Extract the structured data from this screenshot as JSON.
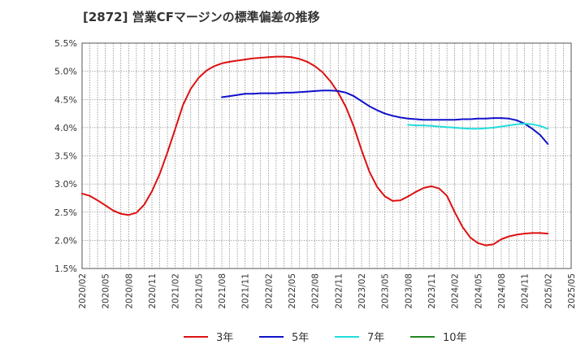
{
  "chart_data": {
    "type": "line",
    "title": "[2872]  営業CFマージンの標準偏差の推移",
    "xlabel": "",
    "ylabel": "",
    "ylim": [
      1.5,
      5.5
    ],
    "y_ticks": [
      "5.5%",
      "5.0%",
      "4.5%",
      "4.0%",
      "3.5%",
      "3.0%",
      "2.5%",
      "2.0%",
      "1.5%"
    ],
    "x_ticks": [
      "2020/02",
      "2020/05",
      "2020/08",
      "2020/11",
      "2021/02",
      "2021/05",
      "2021/08",
      "2021/11",
      "2022/02",
      "2022/05",
      "2022/08",
      "2022/11",
      "2023/02",
      "2023/05",
      "2023/08",
      "2023/11",
      "2024/02",
      "2024/05",
      "2024/08",
      "2024/11",
      "2025/02",
      "2025/05"
    ],
    "grid": true,
    "legend_position": "bottom",
    "series": [
      {
        "name": "3年",
        "color": "#dd1111",
        "points": [
          [
            "2020/02",
            2.83
          ],
          [
            "2020/03",
            2.79
          ],
          [
            "2020/04",
            2.71
          ],
          [
            "2020/05",
            2.62
          ],
          [
            "2020/06",
            2.53
          ],
          [
            "2020/07",
            2.47
          ],
          [
            "2020/08",
            2.45
          ],
          [
            "2020/09",
            2.49
          ],
          [
            "2020/10",
            2.63
          ],
          [
            "2020/11",
            2.87
          ],
          [
            "2020/12",
            3.18
          ],
          [
            "2021/01",
            3.56
          ],
          [
            "2021/02",
            3.98
          ],
          [
            "2021/03",
            4.4
          ],
          [
            "2021/04",
            4.69
          ],
          [
            "2021/05",
            4.88
          ],
          [
            "2021/06",
            5.01
          ],
          [
            "2021/07",
            5.09
          ],
          [
            "2021/08",
            5.14
          ],
          [
            "2021/09",
            5.17
          ],
          [
            "2021/10",
            5.19
          ],
          [
            "2021/11",
            5.21
          ],
          [
            "2021/12",
            5.23
          ],
          [
            "2022/01",
            5.24
          ],
          [
            "2022/02",
            5.25
          ],
          [
            "2022/03",
            5.26
          ],
          [
            "2022/04",
            5.26
          ],
          [
            "2022/05",
            5.25
          ],
          [
            "2022/06",
            5.22
          ],
          [
            "2022/07",
            5.17
          ],
          [
            "2022/08",
            5.09
          ],
          [
            "2022/09",
            4.98
          ],
          [
            "2022/10",
            4.82
          ],
          [
            "2022/11",
            4.62
          ],
          [
            "2022/12",
            4.36
          ],
          [
            "2023/01",
            4.02
          ],
          [
            "2023/02",
            3.6
          ],
          [
            "2023/03",
            3.22
          ],
          [
            "2023/04",
            2.95
          ],
          [
            "2023/05",
            2.78
          ],
          [
            "2023/06",
            2.7
          ],
          [
            "2023/07",
            2.71
          ],
          [
            "2023/08",
            2.78
          ],
          [
            "2023/09",
            2.86
          ],
          [
            "2023/10",
            2.93
          ],
          [
            "2023/11",
            2.96
          ],
          [
            "2023/12",
            2.92
          ],
          [
            "2024/01",
            2.79
          ],
          [
            "2024/02",
            2.5
          ],
          [
            "2024/03",
            2.24
          ],
          [
            "2024/04",
            2.05
          ],
          [
            "2024/05",
            1.95
          ],
          [
            "2024/06",
            1.91
          ],
          [
            "2024/07",
            1.93
          ],
          [
            "2024/08",
            2.02
          ],
          [
            "2024/09",
            2.07
          ],
          [
            "2024/10",
            2.1
          ],
          [
            "2024/11",
            2.12
          ],
          [
            "2024/12",
            2.13
          ],
          [
            "2025/01",
            2.13
          ],
          [
            "2025/02",
            2.12
          ]
        ]
      },
      {
        "name": "5年",
        "color": "#1111cc",
        "points": [
          [
            "2021/08",
            4.54
          ],
          [
            "2021/09",
            4.56
          ],
          [
            "2021/10",
            4.58
          ],
          [
            "2021/11",
            4.6
          ],
          [
            "2021/12",
            4.6
          ],
          [
            "2022/01",
            4.61
          ],
          [
            "2022/02",
            4.61
          ],
          [
            "2022/03",
            4.61
          ],
          [
            "2022/04",
            4.62
          ],
          [
            "2022/05",
            4.62
          ],
          [
            "2022/06",
            4.63
          ],
          [
            "2022/07",
            4.64
          ],
          [
            "2022/08",
            4.65
          ],
          [
            "2022/09",
            4.66
          ],
          [
            "2022/10",
            4.66
          ],
          [
            "2022/11",
            4.65
          ],
          [
            "2022/12",
            4.62
          ],
          [
            "2023/01",
            4.56
          ],
          [
            "2023/02",
            4.47
          ],
          [
            "2023/03",
            4.38
          ],
          [
            "2023/04",
            4.31
          ],
          [
            "2023/05",
            4.25
          ],
          [
            "2023/06",
            4.21
          ],
          [
            "2023/07",
            4.18
          ],
          [
            "2023/08",
            4.16
          ],
          [
            "2023/09",
            4.15
          ],
          [
            "2023/10",
            4.14
          ],
          [
            "2023/11",
            4.14
          ],
          [
            "2023/12",
            4.14
          ],
          [
            "2024/01",
            4.14
          ],
          [
            "2024/02",
            4.14
          ],
          [
            "2024/03",
            4.15
          ],
          [
            "2024/04",
            4.15
          ],
          [
            "2024/05",
            4.16
          ],
          [
            "2024/06",
            4.16
          ],
          [
            "2024/07",
            4.17
          ],
          [
            "2024/08",
            4.17
          ],
          [
            "2024/09",
            4.16
          ],
          [
            "2024/10",
            4.13
          ],
          [
            "2024/11",
            4.07
          ],
          [
            "2024/12",
            3.98
          ],
          [
            "2025/01",
            3.87
          ],
          [
            "2025/02",
            3.71
          ]
        ]
      },
      {
        "name": "7年",
        "color": "#22dddd",
        "points": [
          [
            "2023/08",
            4.05
          ],
          [
            "2023/09",
            4.04
          ],
          [
            "2023/10",
            4.04
          ],
          [
            "2023/11",
            4.03
          ],
          [
            "2023/12",
            4.02
          ],
          [
            "2024/01",
            4.01
          ],
          [
            "2024/02",
            4.0
          ],
          [
            "2024/03",
            3.99
          ],
          [
            "2024/04",
            3.98
          ],
          [
            "2024/05",
            3.98
          ],
          [
            "2024/06",
            3.99
          ],
          [
            "2024/07",
            4.0
          ],
          [
            "2024/08",
            4.02
          ],
          [
            "2024/09",
            4.04
          ],
          [
            "2024/10",
            4.06
          ],
          [
            "2024/11",
            4.07
          ],
          [
            "2024/12",
            4.06
          ],
          [
            "2025/01",
            4.03
          ],
          [
            "2025/02",
            3.98
          ]
        ]
      },
      {
        "name": "10年",
        "color": "#228822",
        "points": []
      }
    ]
  }
}
